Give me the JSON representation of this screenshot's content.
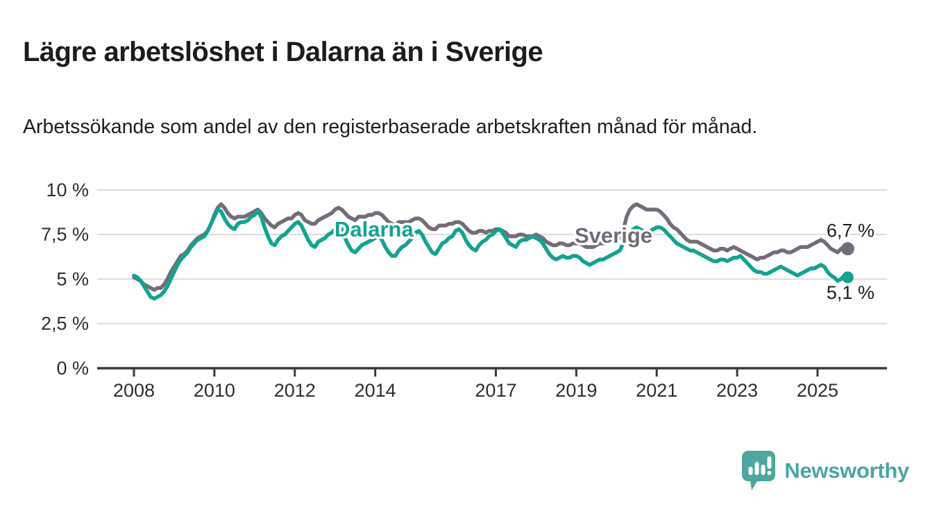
{
  "header": {
    "title": "Lägre arbetslöshet i Dalarna än i Sverige",
    "subtitle": "Arbetssökande som andel av den registerbaserade arbetskraften månad för månad."
  },
  "chart_data": {
    "type": "line",
    "x_unit": "month",
    "x_start": "2008-01",
    "x_end": "2025-10",
    "grid": true,
    "x_tick_labels": [
      "2008",
      "2010",
      "2012",
      "2014",
      "2017",
      "2019",
      "2021",
      "2023",
      "2025"
    ],
    "x_tick_years": [
      2008,
      2010,
      2012,
      2014,
      2017,
      2019,
      2021,
      2023,
      2025
    ],
    "y_tick_labels": [
      "0 %",
      "2,5 %",
      "5 %",
      "7,5 %",
      "10 %"
    ],
    "y_tick_values": [
      0,
      2.5,
      5,
      7.5,
      10
    ],
    "ylim": [
      0,
      10
    ],
    "series": [
      {
        "name": "Sverige",
        "color": "#726E79",
        "end_label": "6,7 %",
        "end_value": 6.7,
        "values": [
          5.1,
          5.0,
          4.9,
          4.7,
          4.6,
          4.5,
          4.4,
          4.5,
          4.5,
          4.7,
          5.0,
          5.4,
          5.7,
          6.0,
          6.3,
          6.4,
          6.6,
          6.9,
          7.1,
          7.3,
          7.4,
          7.5,
          7.7,
          8.1,
          8.6,
          9.0,
          9.2,
          9.0,
          8.7,
          8.5,
          8.4,
          8.5,
          8.5,
          8.5,
          8.6,
          8.7,
          8.8,
          8.9,
          8.7,
          8.4,
          8.2,
          8.0,
          7.9,
          8.1,
          8.2,
          8.3,
          8.4,
          8.4,
          8.6,
          8.7,
          8.6,
          8.3,
          8.2,
          8.1,
          8.1,
          8.3,
          8.4,
          8.5,
          8.6,
          8.7,
          8.9,
          9.0,
          8.9,
          8.7,
          8.5,
          8.4,
          8.3,
          8.5,
          8.5,
          8.5,
          8.6,
          8.6,
          8.7,
          8.7,
          8.6,
          8.4,
          8.2,
          8.1,
          8.0,
          8.2,
          8.2,
          8.2,
          8.2,
          8.3,
          8.4,
          8.4,
          8.3,
          8.1,
          7.9,
          7.8,
          7.8,
          8.0,
          8.0,
          8.0,
          8.1,
          8.1,
          8.2,
          8.2,
          8.1,
          7.9,
          7.7,
          7.6,
          7.6,
          7.7,
          7.7,
          7.6,
          7.7,
          7.7,
          7.8,
          7.8,
          7.7,
          7.6,
          7.4,
          7.4,
          7.4,
          7.5,
          7.5,
          7.4,
          7.4,
          7.4,
          7.5,
          7.4,
          7.3,
          7.1,
          7.0,
          6.9,
          6.9,
          7.0,
          7.0,
          6.9,
          6.9,
          7.0,
          7.0,
          7.0,
          6.9,
          6.8,
          6.8,
          6.8,
          6.9,
          7.0,
          7.0,
          7.0,
          7.1,
          7.2,
          7.3,
          7.3,
          7.7,
          8.5,
          8.9,
          9.1,
          9.2,
          9.1,
          9.0,
          8.9,
          8.9,
          8.9,
          8.9,
          8.8,
          8.6,
          8.4,
          8.1,
          7.9,
          7.8,
          7.6,
          7.4,
          7.2,
          7.1,
          7.1,
          7.1,
          7.0,
          6.9,
          6.8,
          6.7,
          6.6,
          6.6,
          6.7,
          6.7,
          6.6,
          6.7,
          6.8,
          6.7,
          6.6,
          6.5,
          6.4,
          6.3,
          6.2,
          6.1,
          6.2,
          6.2,
          6.3,
          6.4,
          6.5,
          6.5,
          6.6,
          6.6,
          6.5,
          6.5,
          6.6,
          6.7,
          6.8,
          6.8,
          6.8,
          6.9,
          7.0,
          7.1,
          7.2,
          7.1,
          6.9,
          6.7,
          6.6,
          6.5,
          6.7,
          6.8,
          6.7
        ]
      },
      {
        "name": "Dalarna",
        "color": "#14A390",
        "end_label": "5,1 %",
        "end_value": 5.1,
        "values": [
          5.2,
          5.1,
          4.9,
          4.6,
          4.3,
          4.0,
          3.9,
          4.0,
          4.1,
          4.3,
          4.6,
          5.0,
          5.4,
          5.8,
          6.1,
          6.3,
          6.5,
          6.8,
          7.0,
          7.2,
          7.3,
          7.4,
          7.7,
          8.1,
          8.5,
          8.9,
          8.8,
          8.4,
          8.1,
          7.9,
          7.8,
          8.1,
          8.2,
          8.2,
          8.3,
          8.5,
          8.6,
          8.8,
          8.5,
          7.9,
          7.4,
          7.0,
          6.9,
          7.2,
          7.4,
          7.5,
          7.7,
          7.9,
          8.1,
          8.2,
          8.0,
          7.6,
          7.2,
          6.9,
          6.8,
          7.1,
          7.2,
          7.3,
          7.5,
          7.6,
          7.8,
          7.9,
          7.8,
          7.3,
          6.9,
          6.6,
          6.5,
          6.7,
          6.9,
          7.0,
          7.1,
          7.2,
          7.3,
          7.4,
          7.2,
          6.8,
          6.5,
          6.3,
          6.3,
          6.6,
          6.8,
          6.9,
          7.1,
          7.3,
          7.6,
          7.7,
          7.5,
          7.1,
          6.8,
          6.5,
          6.4,
          6.7,
          7.0,
          7.1,
          7.3,
          7.4,
          7.7,
          7.8,
          7.6,
          7.2,
          6.9,
          6.7,
          6.6,
          6.9,
          7.1,
          7.2,
          7.4,
          7.5,
          7.7,
          7.8,
          7.6,
          7.3,
          7.0,
          6.9,
          6.8,
          7.1,
          7.2,
          7.2,
          7.3,
          7.4,
          7.3,
          7.2,
          7.0,
          6.7,
          6.4,
          6.2,
          6.1,
          6.2,
          6.3,
          6.2,
          6.2,
          6.3,
          6.3,
          6.2,
          6.0,
          5.9,
          5.8,
          5.9,
          6.0,
          6.1,
          6.1,
          6.2,
          6.3,
          6.4,
          6.5,
          6.6,
          7.0,
          7.4,
          7.6,
          7.8,
          7.9,
          7.8,
          7.7,
          7.6,
          7.7,
          7.8,
          7.9,
          7.9,
          7.8,
          7.6,
          7.4,
          7.2,
          7.0,
          6.9,
          6.8,
          6.7,
          6.6,
          6.6,
          6.5,
          6.4,
          6.3,
          6.2,
          6.1,
          6.0,
          6.0,
          6.1,
          6.1,
          6.0,
          6.1,
          6.2,
          6.2,
          6.3,
          6.1,
          5.9,
          5.7,
          5.5,
          5.4,
          5.4,
          5.3,
          5.3,
          5.4,
          5.5,
          5.6,
          5.7,
          5.6,
          5.5,
          5.4,
          5.3,
          5.2,
          5.3,
          5.4,
          5.5,
          5.6,
          5.6,
          5.7,
          5.8,
          5.7,
          5.4,
          5.2,
          5.1,
          4.9,
          5.0,
          5.2,
          5.1
        ]
      }
    ],
    "inline_labels": [
      {
        "text": "Dalarna",
        "color": "#14A390",
        "x": 482,
        "y": 341
      },
      {
        "text": "Sverige",
        "color": "#6F6B76",
        "x": 828,
        "y": 350
      }
    ]
  },
  "footer": {
    "brand": "Newsworthy",
    "brand_color": "#4BA7A0",
    "logo_icon": "bar-chart-speech-bubble-icon"
  }
}
